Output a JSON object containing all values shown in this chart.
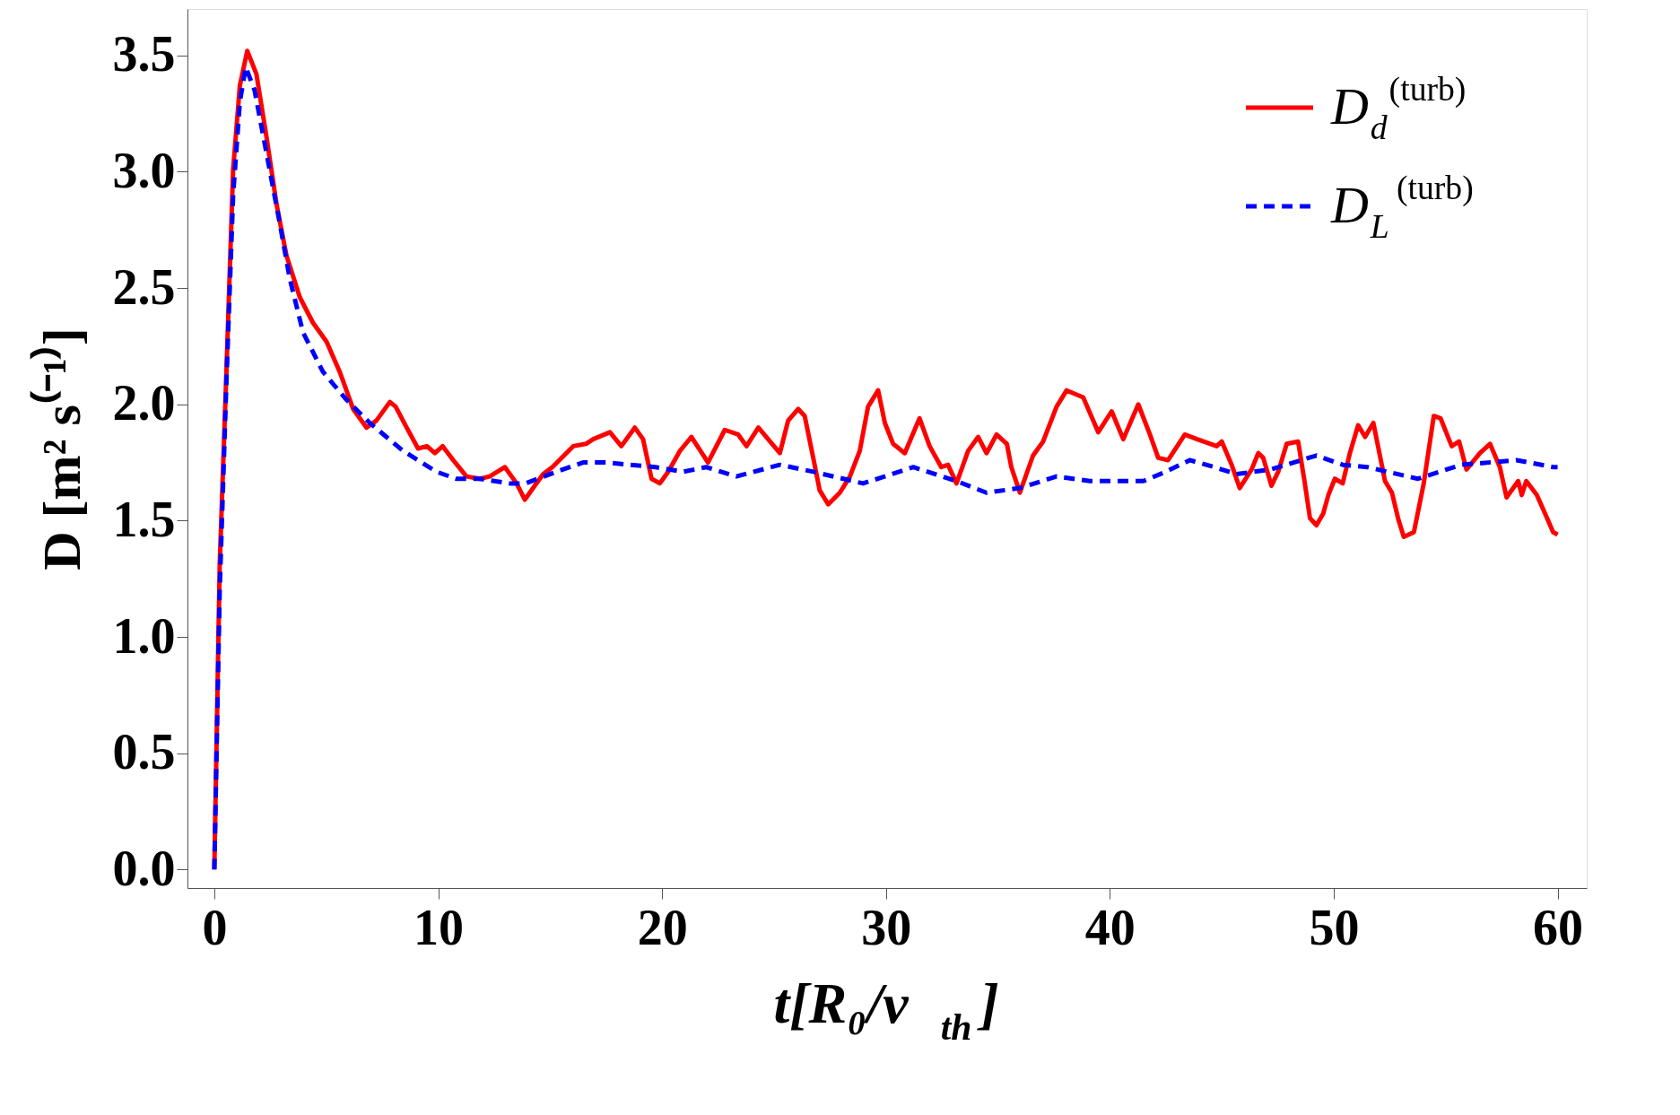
{
  "chart_data": {
    "type": "line",
    "xlabel": "t[R₀/v$_{th}$]",
    "ylabel": "D [m² s⁽⁻¹⁾]",
    "xlim": [
      -1.2,
      61.3
    ],
    "ylim": [
      -0.08,
      3.7
    ],
    "xticks": [
      0,
      10,
      20,
      30,
      40,
      50,
      60
    ],
    "yticks": [
      {
        "value": 0,
        "label": "0.0"
      },
      0.5,
      {
        "value": 1,
        "label": "1.0"
      },
      1.5,
      {
        "value": 2,
        "label": "2.0"
      },
      2.5,
      {
        "value": 3,
        "label": "3.0"
      },
      3.5
    ],
    "grid": false,
    "legend": "top right",
    "marker": "none",
    "series": [
      {
        "name": "D$_{d}$$^{(turb)}$",
        "color": "#ff0000",
        "line_style": "solid",
        "x": [
          0,
          0.24,
          0.54,
          0.84,
          1.14,
          1.47,
          1.88,
          2.33,
          2.78,
          3.22,
          3.82,
          4.41,
          5.01,
          5.6,
          6.2,
          6.8,
          7.24,
          7.84,
          8.1,
          8.59,
          9.1,
          9.5,
          9.85,
          10.2,
          10.67,
          11.26,
          11.86,
          12.3,
          12.98,
          13.5,
          13.87,
          14.24,
          14.69,
          15.1,
          16.03,
          16.6,
          16.92,
          17.67,
          18.18,
          18.78,
          19.15,
          19.53,
          19.9,
          20.27,
          20.8,
          21.31,
          22.05,
          22.8,
          23.4,
          23.77,
          24.3,
          25.26,
          25.63,
          26.08,
          26.37,
          26.75,
          27.04,
          27.42,
          27.94,
          28.39,
          28.83,
          29.2,
          29.65,
          29.95,
          30.32,
          30.84,
          31.5,
          31.95,
          32.47,
          32.77,
          33.15,
          33.67,
          34.12,
          34.49,
          34.94,
          35.4,
          35.6,
          35.98,
          36.57,
          37.02,
          37.62,
          38.07,
          38.81,
          39.48,
          40.08,
          40.6,
          41.27,
          41.79,
          42.16,
          42.6,
          43.35,
          43.9,
          44.77,
          45.0,
          45.44,
          45.8,
          46.33,
          46.63,
          46.85,
          47.22,
          47.52,
          47.9,
          48.41,
          48.71,
          48.94,
          49.23,
          49.53,
          49.76,
          50.05,
          50.4,
          50.72,
          51.09,
          51.4,
          51.77,
          52.29,
          52.6,
          52.9,
          53.13,
          53.58,
          54.02,
          54.47,
          54.77,
          55.27,
          55.6,
          55.93,
          56.53,
          56.98,
          57.42,
          57.72,
          58.24,
          58.4,
          58.6,
          59.07,
          59.44,
          59.8,
          60
        ],
        "values": [
          0,
          1.31,
          2.14,
          3.01,
          3.37,
          3.52,
          3.42,
          3.15,
          2.86,
          2.64,
          2.46,
          2.35,
          2.27,
          2.14,
          1.98,
          1.9,
          1.93,
          2.01,
          1.99,
          1.9,
          1.81,
          1.82,
          1.79,
          1.82,
          1.76,
          1.69,
          1.68,
          1.69,
          1.73,
          1.66,
          1.59,
          1.64,
          1.7,
          1.73,
          1.82,
          1.83,
          1.85,
          1.88,
          1.82,
          1.9,
          1.85,
          1.68,
          1.66,
          1.71,
          1.8,
          1.86,
          1.75,
          1.89,
          1.87,
          1.82,
          1.9,
          1.79,
          1.93,
          1.98,
          1.95,
          1.77,
          1.63,
          1.57,
          1.62,
          1.69,
          1.8,
          1.99,
          2.06,
          1.92,
          1.83,
          1.79,
          1.94,
          1.82,
          1.73,
          1.74,
          1.66,
          1.8,
          1.86,
          1.79,
          1.87,
          1.83,
          1.73,
          1.62,
          1.78,
          1.84,
          1.99,
          2.06,
          2.03,
          1.88,
          1.97,
          1.85,
          2.0,
          1.87,
          1.77,
          1.76,
          1.87,
          1.85,
          1.82,
          1.84,
          1.74,
          1.64,
          1.72,
          1.79,
          1.77,
          1.65,
          1.71,
          1.83,
          1.84,
          1.66,
          1.51,
          1.48,
          1.53,
          1.61,
          1.68,
          1.66,
          1.79,
          1.91,
          1.86,
          1.92,
          1.67,
          1.62,
          1.5,
          1.43,
          1.45,
          1.66,
          1.95,
          1.94,
          1.82,
          1.84,
          1.72,
          1.79,
          1.83,
          1.73,
          1.6,
          1.67,
          1.61,
          1.67,
          1.61,
          1.53,
          1.45,
          1.44
        ]
      },
      {
        "name": "D$_{L}$$^{(turb)}$",
        "color": "#0000ff",
        "line_style": "dashed",
        "x": [
          0,
          0.24,
          0.54,
          0.84,
          1.14,
          1.4,
          1.8,
          2.33,
          2.92,
          3.37,
          3.96,
          4.85,
          5.9,
          6.94,
          8.43,
          9.92,
          10.8,
          11.86,
          13.2,
          13.9,
          15.28,
          16.47,
          17.5,
          18.56,
          19.7,
          20.93,
          21.97,
          23.32,
          25.26,
          26.75,
          28.98,
          31.22,
          33.15,
          34.49,
          35.98,
          37.62,
          39.1,
          40.6,
          41.5,
          42.5,
          43.57,
          44.67,
          45.66,
          47.2,
          49.23,
          50.4,
          51.5,
          53.76,
          55.7,
          58.16,
          59.8,
          60
        ],
        "values": [
          0,
          1.2,
          2.1,
          2.9,
          3.3,
          3.45,
          3.35,
          3.08,
          2.78,
          2.54,
          2.31,
          2.14,
          2.02,
          1.92,
          1.8,
          1.71,
          1.68,
          1.68,
          1.66,
          1.66,
          1.71,
          1.75,
          1.75,
          1.74,
          1.73,
          1.71,
          1.73,
          1.69,
          1.74,
          1.71,
          1.66,
          1.73,
          1.67,
          1.62,
          1.64,
          1.69,
          1.67,
          1.67,
          1.67,
          1.71,
          1.76,
          1.73,
          1.7,
          1.72,
          1.78,
          1.74,
          1.73,
          1.68,
          1.74,
          1.76,
          1.73,
          1.73
        ]
      }
    ]
  }
}
